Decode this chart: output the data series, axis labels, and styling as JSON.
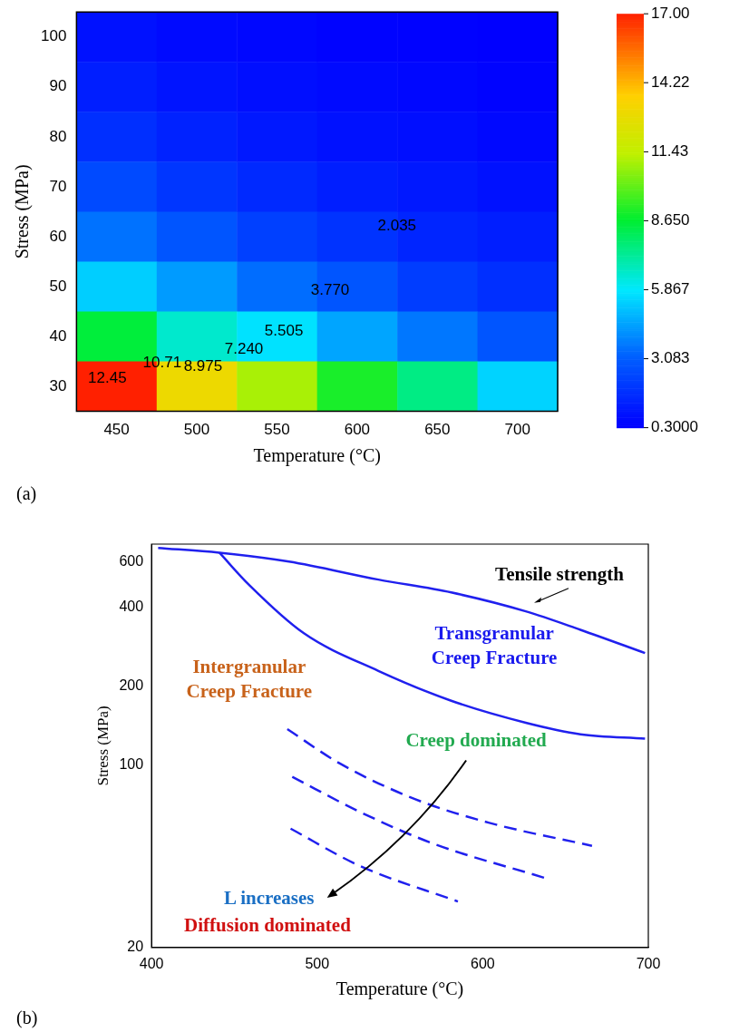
{
  "chart_data": [
    {
      "type": "heatmap",
      "xlabel": "Temperature (°C)",
      "ylabel": "Stress (MPa)",
      "categories": [
        "450",
        "500",
        "550",
        "600",
        "650",
        "700"
      ],
      "y_categories": [
        "100",
        "90",
        "80",
        "70",
        "60",
        "50",
        "40",
        "30"
      ],
      "cells": [
        [
          0.8,
          0.6,
          0.5,
          0.4,
          0.35,
          0.3
        ],
        [
          1.2,
          0.9,
          0.7,
          0.6,
          0.5,
          0.4
        ],
        [
          1.7,
          1.3,
          1.0,
          0.8,
          0.7,
          0.55
        ],
        [
          2.5,
          1.9,
          1.5,
          1.2,
          1.0,
          0.8
        ],
        [
          3.5,
          2.8,
          2.2,
          1.8,
          1.4,
          1.2
        ],
        [
          5.3,
          4.3,
          3.4,
          2.8,
          2.1,
          1.7
        ],
        [
          8.5,
          6.5,
          5.7,
          4.5,
          3.6,
          2.8
        ],
        [
          17,
          13,
          11,
          9,
          7.5,
          5.4
        ]
      ],
      "clim": [
        0.3,
        17
      ],
      "cticks": [
        {
          "value": 0.3,
          "label": "0.3000"
        },
        {
          "value": 3.083,
          "label": "3.083"
        },
        {
          "value": 5.867,
          "label": "5.867"
        },
        {
          "value": 8.65,
          "label": "8.650"
        },
        {
          "value": 11.43,
          "label": "11.43"
        },
        {
          "value": 14.22,
          "label": "14.22"
        },
        {
          "value": 17,
          "label": "17.00"
        }
      ],
      "annotations": [
        "(a)",
        "2.035",
        "3.770",
        "5.505",
        "7.240",
        "8.975",
        "10.71",
        "12.45"
      ]
    },
    {
      "type": "line",
      "xlabel": "Temperature (°C)",
      "ylabel": "Stress (MPa)",
      "log": "y",
      "grid": false,
      "legend": false,
      "marker": "none",
      "xlim": [
        400,
        700
      ],
      "xticks": [
        400,
        500,
        600,
        700
      ],
      "ylim": [
        20,
        700
      ],
      "yticks": [
        20,
        100,
        200,
        400,
        600
      ],
      "series": [
        {
          "color": "#2020ee",
          "line_style": "solid",
          "x": [
            404,
            441,
            483,
            537,
            581,
            626,
            659,
            698
          ],
          "values": [
            677,
            649,
            600,
            512,
            457,
            387,
            329,
            268
          ]
        },
        {
          "color": "#2020ee",
          "line_style": "solid",
          "x": [
            441,
            459,
            492,
            537,
            581,
            626,
            659,
            698
          ],
          "values": [
            649,
            488,
            319,
            229,
            176,
            145,
            131,
            126
          ]
        },
        {
          "color": "#2020ee",
          "line_style": "dashed",
          "x": [
            482,
            514,
            559,
            604,
            666
          ],
          "values": [
            137,
            101,
            74,
            60,
            49
          ]
        },
        {
          "color": "#2020ee",
          "line_style": "dashed",
          "x": [
            485,
            526,
            570,
            637
          ],
          "values": [
            90,
            66,
            50,
            37
          ]
        },
        {
          "color": "#2020ee",
          "line_style": "dashed",
          "x": [
            484,
            526,
            585
          ],
          "values": [
            57,
            41,
            30
          ]
        }
      ],
      "annotations": [
        "(b)",
        "Tensile strength",
        "Transgranular\nCreep Fracture",
        "Intergranular\nCreep Fracture",
        "Creep dominated",
        "L increases",
        "Diffusion dominated"
      ]
    }
  ]
}
